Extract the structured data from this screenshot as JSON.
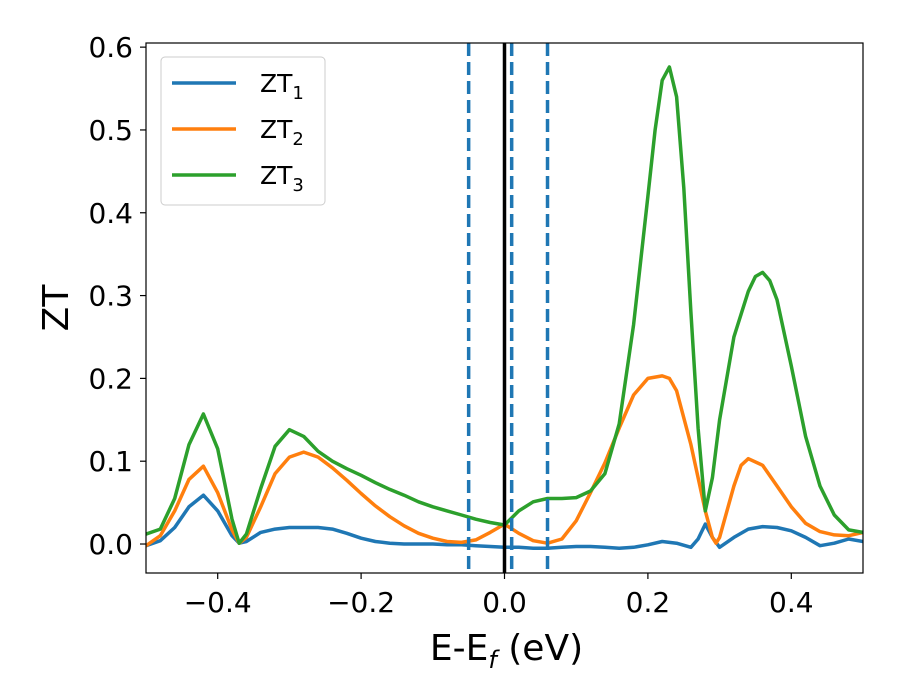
{
  "chart_data": {
    "type": "line",
    "xlabel": "E-E_f (eV)",
    "ylabel": "ZT",
    "xlim": [
      -0.5,
      0.5
    ],
    "ylim": [
      -0.035,
      0.605
    ],
    "xticks": [
      -0.4,
      -0.2,
      0.0,
      0.2,
      0.4
    ],
    "xtick_labels": [
      "−0.4",
      "−0.2",
      "0.0",
      "0.2",
      "0.4"
    ],
    "yticks": [
      0.0,
      0.1,
      0.2,
      0.3,
      0.4,
      0.5,
      0.6
    ],
    "ytick_labels": [
      "0.0",
      "0.1",
      "0.2",
      "0.3",
      "0.4",
      "0.5",
      "0.6"
    ],
    "grid": false,
    "legend_position": "top-left",
    "vertical_lines": [
      {
        "x": 0.0,
        "style": "solid",
        "color": "#000000"
      },
      {
        "x": -0.05,
        "style": "dashed",
        "color": "#1f77b4"
      },
      {
        "x": 0.01,
        "style": "dashed",
        "color": "#1f77b4"
      },
      {
        "x": 0.06,
        "style": "dashed",
        "color": "#1f77b4"
      }
    ],
    "series": [
      {
        "name": "ZT1",
        "name_base": "ZT",
        "name_sub": "1",
        "color": "#1f77b4",
        "x": [
          -0.5,
          -0.48,
          -0.46,
          -0.44,
          -0.42,
          -0.4,
          -0.38,
          -0.37,
          -0.36,
          -0.34,
          -0.32,
          -0.3,
          -0.28,
          -0.26,
          -0.24,
          -0.22,
          -0.2,
          -0.18,
          -0.16,
          -0.14,
          -0.12,
          -0.1,
          -0.08,
          -0.06,
          -0.04,
          -0.02,
          0.0,
          0.02,
          0.04,
          0.06,
          0.08,
          0.1,
          0.12,
          0.14,
          0.16,
          0.18,
          0.2,
          0.22,
          0.24,
          0.26,
          0.27,
          0.28,
          0.29,
          0.3,
          0.32,
          0.34,
          0.36,
          0.38,
          0.4,
          0.42,
          0.44,
          0.46,
          0.48,
          0.5
        ],
        "y": [
          -0.002,
          0.004,
          0.02,
          0.045,
          0.059,
          0.04,
          0.01,
          0.001,
          0.003,
          0.014,
          0.018,
          0.02,
          0.02,
          0.02,
          0.018,
          0.013,
          0.007,
          0.003,
          0.001,
          0.0,
          0.0,
          0.0,
          -0.001,
          -0.001,
          -0.002,
          -0.003,
          -0.004,
          -0.004,
          -0.005,
          -0.005,
          -0.004,
          -0.003,
          -0.003,
          -0.004,
          -0.005,
          -0.004,
          -0.001,
          0.003,
          0.001,
          -0.004,
          0.006,
          0.024,
          0.008,
          -0.004,
          0.008,
          0.018,
          0.021,
          0.02,
          0.016,
          0.008,
          -0.002,
          0.001,
          0.006,
          0.003
        ]
      },
      {
        "name": "ZT2",
        "name_base": "ZT",
        "name_sub": "2",
        "color": "#ff7f0e",
        "x": [
          -0.5,
          -0.48,
          -0.46,
          -0.44,
          -0.42,
          -0.4,
          -0.38,
          -0.37,
          -0.36,
          -0.34,
          -0.32,
          -0.3,
          -0.28,
          -0.26,
          -0.24,
          -0.22,
          -0.2,
          -0.18,
          -0.16,
          -0.14,
          -0.12,
          -0.1,
          -0.08,
          -0.06,
          -0.04,
          -0.02,
          0.0,
          0.02,
          0.04,
          0.06,
          0.08,
          0.1,
          0.12,
          0.14,
          0.16,
          0.18,
          0.2,
          0.22,
          0.23,
          0.24,
          0.26,
          0.28,
          0.29,
          0.295,
          0.3,
          0.32,
          0.33,
          0.34,
          0.36,
          0.38,
          0.4,
          0.42,
          0.44,
          0.46,
          0.48,
          0.5
        ],
        "y": [
          -0.002,
          0.01,
          0.04,
          0.078,
          0.094,
          0.062,
          0.017,
          0.001,
          0.008,
          0.045,
          0.085,
          0.105,
          0.111,
          0.105,
          0.092,
          0.077,
          0.061,
          0.046,
          0.033,
          0.022,
          0.013,
          0.007,
          0.003,
          0.002,
          0.005,
          0.014,
          0.024,
          0.013,
          0.004,
          0.001,
          0.006,
          0.028,
          0.062,
          0.098,
          0.14,
          0.18,
          0.2,
          0.203,
          0.2,
          0.185,
          0.12,
          0.04,
          0.008,
          0.001,
          0.008,
          0.07,
          0.095,
          0.103,
          0.095,
          0.07,
          0.045,
          0.025,
          0.015,
          0.011,
          0.01,
          0.014
        ]
      },
      {
        "name": "ZT3",
        "name_base": "ZT",
        "name_sub": "3",
        "color": "#2ca02c",
        "x": [
          -0.5,
          -0.48,
          -0.46,
          -0.44,
          -0.42,
          -0.4,
          -0.38,
          -0.37,
          -0.36,
          -0.34,
          -0.32,
          -0.3,
          -0.28,
          -0.26,
          -0.24,
          -0.22,
          -0.2,
          -0.18,
          -0.16,
          -0.14,
          -0.12,
          -0.1,
          -0.08,
          -0.06,
          -0.04,
          -0.02,
          0.0,
          0.02,
          0.04,
          0.06,
          0.08,
          0.1,
          0.12,
          0.14,
          0.16,
          0.18,
          0.2,
          0.21,
          0.22,
          0.23,
          0.24,
          0.25,
          0.26,
          0.27,
          0.28,
          0.29,
          0.3,
          0.32,
          0.34,
          0.35,
          0.36,
          0.37,
          0.38,
          0.4,
          0.42,
          0.44,
          0.46,
          0.48,
          0.5
        ],
        "y": [
          0.012,
          0.018,
          0.055,
          0.12,
          0.157,
          0.115,
          0.03,
          0.001,
          0.012,
          0.067,
          0.118,
          0.138,
          0.13,
          0.112,
          0.1,
          0.091,
          0.083,
          0.074,
          0.066,
          0.059,
          0.051,
          0.045,
          0.04,
          0.035,
          0.03,
          0.026,
          0.023,
          0.04,
          0.051,
          0.055,
          0.055,
          0.056,
          0.064,
          0.085,
          0.145,
          0.265,
          0.42,
          0.5,
          0.56,
          0.576,
          0.54,
          0.43,
          0.28,
          0.14,
          0.04,
          0.08,
          0.15,
          0.25,
          0.305,
          0.323,
          0.328,
          0.318,
          0.295,
          0.215,
          0.13,
          0.07,
          0.035,
          0.017,
          0.014
        ]
      }
    ]
  }
}
